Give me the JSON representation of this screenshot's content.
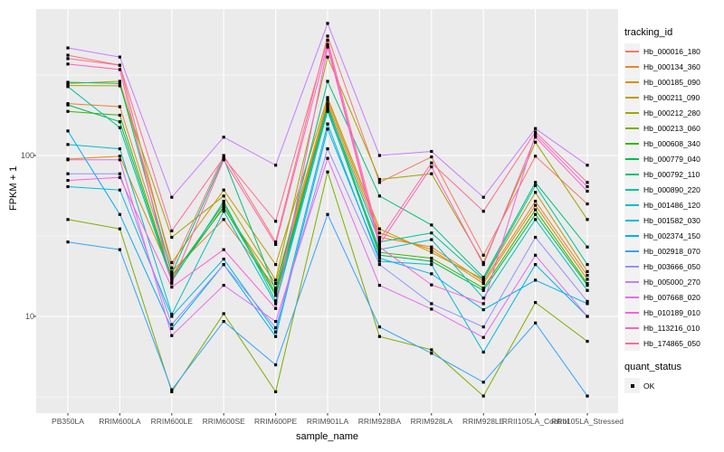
{
  "figure": {
    "y_axis_title": "FPKM + 1",
    "x_axis_title": "sample_name",
    "y_ticks": [
      "100",
      "10"
    ]
  },
  "legend": {
    "tracking_title": "tracking_id",
    "quant_title": "quant_status",
    "quant_ok_label": "OK",
    "quant_marker_color": "#000000"
  },
  "colors": {
    "panel_background": "#ebebeb",
    "gridline": "#ffffff",
    "axis_text": "#4d4d4d",
    "tick_mark": "#333333",
    "point_marker": "#000000",
    "legend_key_fill": "#f2f2f2"
  },
  "chart_data": {
    "type": "line",
    "title": "",
    "xlabel": "sample_name",
    "ylabel": "FPKM + 1",
    "y_scale": "log10",
    "ylim": [
      2.5,
      813
    ],
    "y_major_gridlines": [
      10,
      100
    ],
    "y_minor_gridlines": [
      3.162,
      31.62,
      316.2
    ],
    "grid": true,
    "legend_position": "right",
    "marker": "small-black-square",
    "categories": [
      "PB350LA",
      "RRIM600LA",
      "RRIM600LE",
      "RRIM600SE",
      "RRIM600PE",
      "RRIM901LA",
      "RRIM928BA",
      "RRIM928LA",
      "RRIM928LE",
      "RRII105LA_Control",
      "RRII105LA_Stressed"
    ],
    "series": [
      {
        "name": "Hb_000016_180",
        "color": "#F8766D",
        "values": [
          420,
          364,
          20,
          100,
          29,
          552,
          68,
          98,
          24,
          99,
          50
        ]
      },
      {
        "name": "Hb_000134_360",
        "color": "#EA8331",
        "values": [
          210,
          201,
          19,
          40,
          15,
          210,
          31,
          27,
          16.5,
          52,
          18
        ]
      },
      {
        "name": "Hb_000185_090",
        "color": "#D89000",
        "values": [
          95,
          99,
          18,
          47,
          16,
          220,
          33,
          26,
          16,
          49,
          17
        ]
      },
      {
        "name": "Hb_000211_090",
        "color": "#C09B00",
        "values": [
          280,
          289,
          21.6,
          61,
          21,
          229,
          35,
          25,
          17,
          59,
          19
        ]
      },
      {
        "name": "Hb_000212_280",
        "color": "#A3A500",
        "values": [
          272,
          271,
          31,
          56,
          16.8,
          409,
          71,
          77,
          21.6,
          121,
          40
        ]
      },
      {
        "name": "Hb_000213_060",
        "color": "#7CAE00",
        "values": [
          40,
          35,
          3.4,
          10.4,
          3.4,
          79,
          7.5,
          6.2,
          3.2,
          12.2,
          7.0
        ]
      },
      {
        "name": "Hb_000608_340",
        "color": "#39B600",
        "values": [
          188,
          178,
          17.5,
          50,
          14,
          205,
          25,
          23,
          15,
          46,
          16
        ]
      },
      {
        "name": "Hb_000779_040",
        "color": "#00BB4E",
        "values": [
          206,
          162,
          17,
          48,
          13.5,
          195,
          24,
          22,
          14.5,
          43,
          15.6
        ]
      },
      {
        "name": "Hb_000792_110",
        "color": "#00BF7D",
        "values": [
          285,
          280,
          18.5,
          96,
          14.5,
          289,
          56,
          37,
          17.5,
          68,
          27
        ]
      },
      {
        "name": "Hb_000890_220",
        "color": "#00C1A3",
        "values": [
          268,
          149,
          16.5,
          52,
          12.5,
          200,
          29,
          33,
          17,
          65,
          21
        ]
      },
      {
        "name": "Hb_001486_120",
        "color": "#00BFC4",
        "values": [
          117,
          110,
          10.3,
          45,
          12,
          188,
          26,
          30,
          13,
          40,
          14.5
        ]
      },
      {
        "name": "Hb_001582_030",
        "color": "#00BAE0",
        "values": [
          64,
          61,
          10,
          22.7,
          8,
          157,
          22,
          21,
          6.0,
          21,
          10
        ]
      },
      {
        "name": "Hb_002374_150",
        "color": "#00B0F6",
        "values": [
          142,
          43,
          8.4,
          21,
          7.5,
          146,
          23,
          18.4,
          11,
          16.8,
          12
        ]
      },
      {
        "name": "Hb_002918_070",
        "color": "#35A2FF",
        "values": [
          29,
          26,
          3.5,
          9.3,
          5.0,
          43,
          8.6,
          5.9,
          3.9,
          9.1,
          3.2
        ]
      },
      {
        "name": "Hb_003666_050",
        "color": "#9590FF",
        "values": [
          77,
          77,
          8.9,
          21,
          8.5,
          110,
          21,
          12,
          8.6,
          31,
          12.4
        ]
      },
      {
        "name": "Hb_005000_270",
        "color": "#C77CFF",
        "values": [
          466,
          409,
          55,
          130,
          87,
          662,
          100,
          106,
          55,
          147,
          87
        ]
      },
      {
        "name": "Hb_007668_020",
        "color": "#E76BF3",
        "values": [
          94,
          94,
          7.6,
          15.6,
          9.3,
          96,
          15.6,
          11.1,
          7.4,
          24,
          10
        ]
      },
      {
        "name": "Hb_010189_010",
        "color": "#FA62DB",
        "values": [
          70,
          73,
          15.2,
          26,
          11.2,
          472,
          27,
          15.7,
          12,
          135,
          64
        ]
      },
      {
        "name": "Hb_113216_010",
        "color": "#FF62BC",
        "values": [
          370,
          342,
          16,
          94,
          28,
          490,
          28,
          85,
          21,
          130,
          60
        ]
      },
      {
        "name": "Hb_174865_050",
        "color": "#FF6A98",
        "values": [
          400,
          364,
          34,
          97,
          39,
          520,
          30,
          90,
          45,
          140,
          68
        ]
      }
    ]
  }
}
